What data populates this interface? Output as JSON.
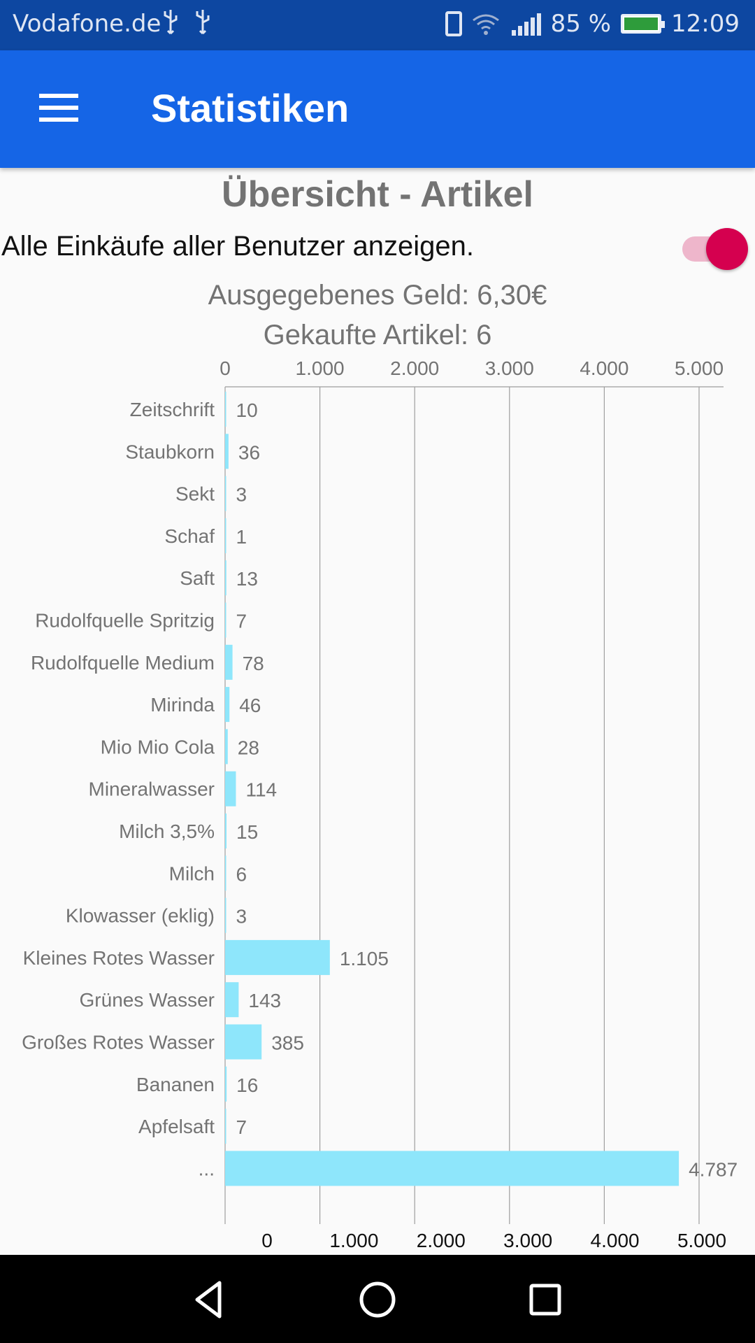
{
  "status_bar": {
    "carrier": "Vodafone.de",
    "battery": "85 %",
    "time": "12:09",
    "icons": [
      "usb-icon",
      "usb-icon",
      "vibrate-icon",
      "wifi-icon",
      "signal-icon",
      "battery-charging-icon"
    ]
  },
  "app_bar": {
    "title": "Statistiken",
    "menu_icon": "menu-icon",
    "color": "#1565e6"
  },
  "content": {
    "section_title": "Übersicht - Artikel",
    "toggle_label": "Alle Einkäufe aller Benutzer anzeigen.",
    "toggle_on": true,
    "toggle_color": "#d5004f",
    "spent_money": "Ausgegebenes Geld: 6,30€",
    "bought_items": "Gekaufte Artikel: 6"
  },
  "chart_data": {
    "type": "bar",
    "orientation": "horizontal",
    "categories": [
      "Zeitschrift",
      "Staubkorn",
      "Sekt",
      "Schaf",
      "Saft",
      "Rudolfquelle Spritzig",
      "Rudolfquelle Medium",
      "Mirinda",
      "Mio Mio Cola",
      "Mineralwasser",
      "Milch 3,5%",
      "Milch",
      "Klowasser (eklig)",
      "Kleines Rotes Wasser",
      "Grünes Wasser",
      "Großes Rotes Wasser",
      "Bananen",
      "Apfelsaft",
      "..."
    ],
    "values": [
      10,
      36,
      3,
      1,
      13,
      7,
      78,
      46,
      28,
      114,
      15,
      6,
      3,
      1105,
      143,
      385,
      16,
      7,
      4787
    ],
    "value_labels": [
      "10",
      "36",
      "3",
      "1",
      "13",
      "7",
      "78",
      "46",
      "28",
      "114",
      "15",
      "6",
      "3",
      "1.105",
      "143",
      "385",
      "16",
      "7",
      "4.787"
    ],
    "top_ticks": [
      "0",
      "1.000",
      "2.000",
      "3.000",
      "4.000",
      "5.000"
    ],
    "bottom_ticks": [
      "0",
      "1.000",
      "2.000",
      "3.000",
      "4.000",
      "5.000"
    ],
    "xlim": [
      0,
      5000
    ],
    "grid": true,
    "bar_color": "#8ee6fb"
  },
  "nav_bar": {
    "buttons": [
      "back-icon",
      "home-icon",
      "recents-icon"
    ]
  }
}
